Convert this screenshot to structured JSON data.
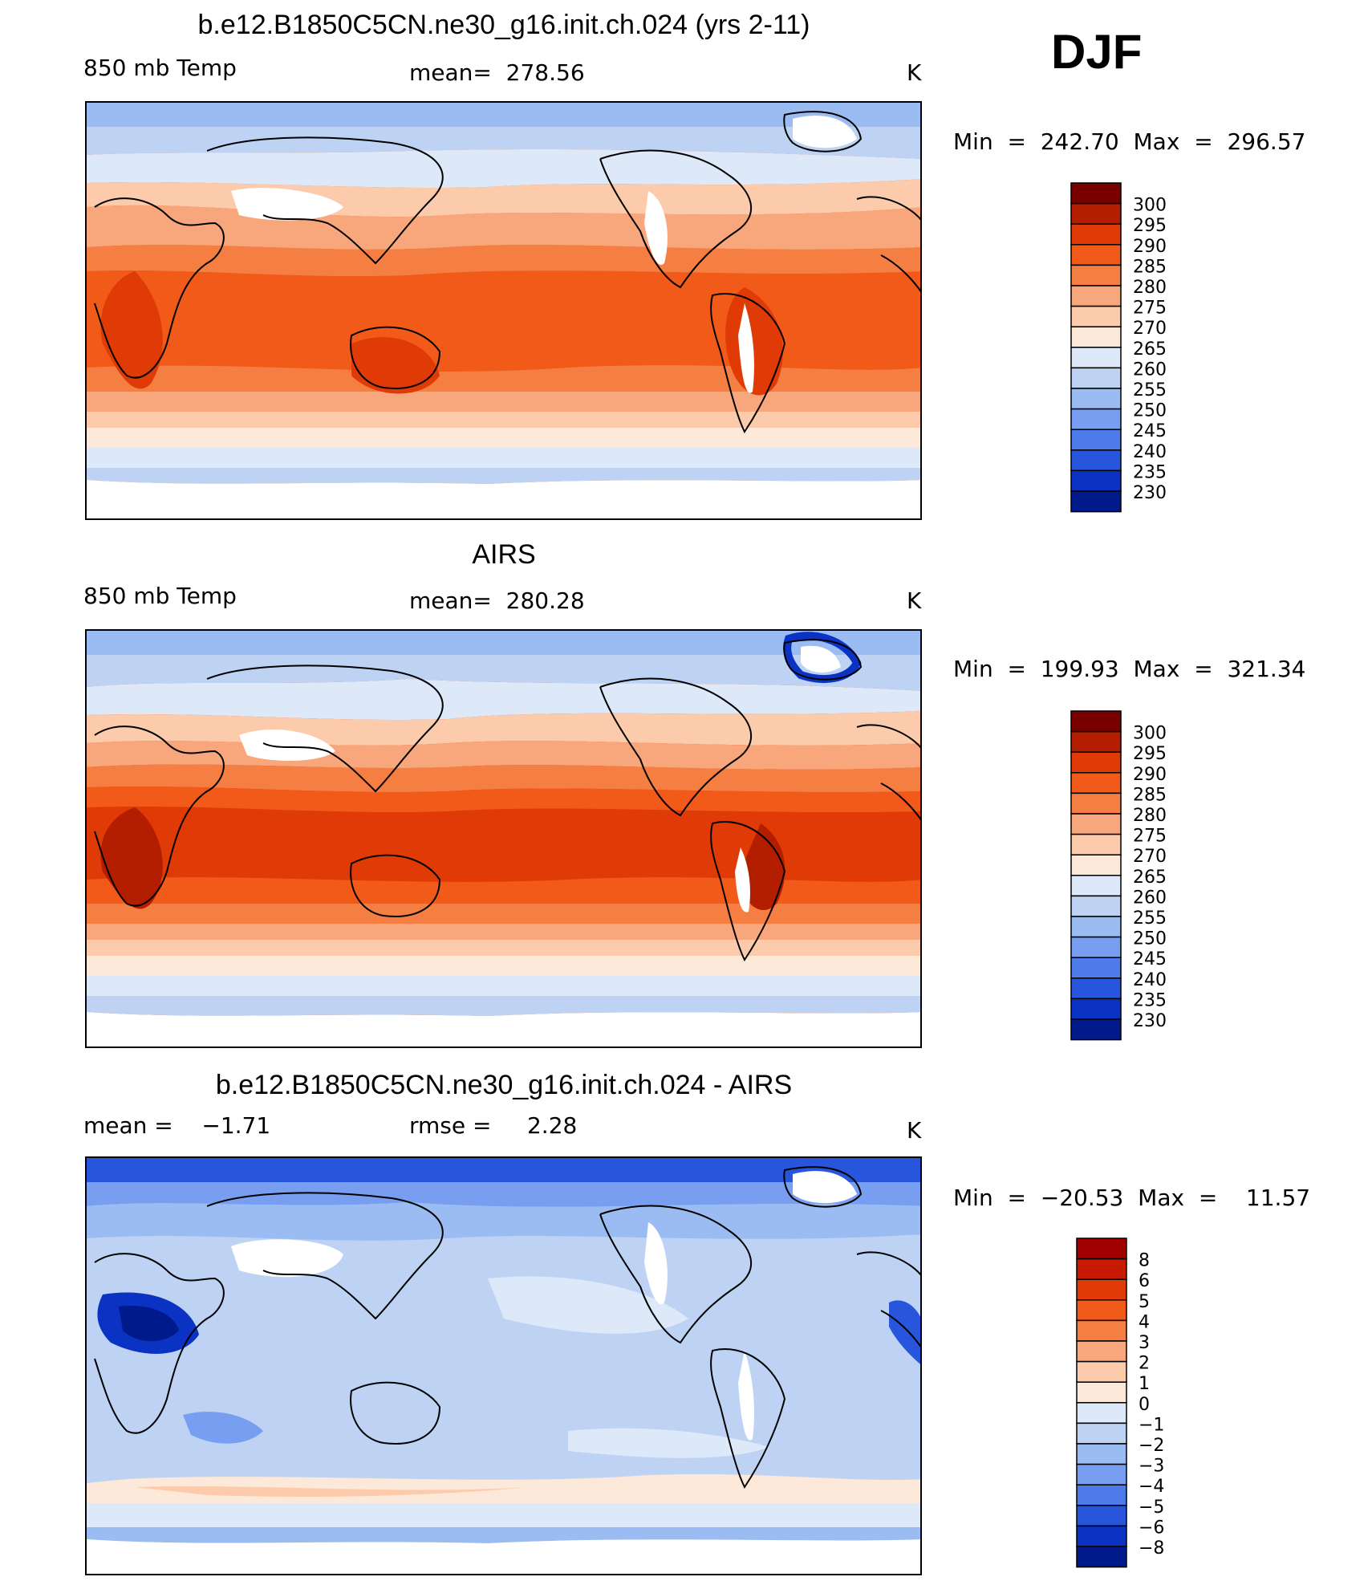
{
  "season": "DJF",
  "panels": [
    {
      "id": "model",
      "title": "b.e12.B1850C5CN.ne30_g16.init.ch.024 (yrs 2-11)",
      "left_label": "850 mb Temp",
      "center_label": "mean=  278.56",
      "units": "K",
      "minmax": "Min  =  242.70  Max  =  296.57",
      "colorbar_labels": [
        "300",
        "295",
        "290",
        "285",
        "280",
        "275",
        "270",
        "265",
        "260",
        "255",
        "250",
        "245",
        "240",
        "235",
        "230"
      ]
    },
    {
      "id": "obs",
      "title": "AIRS",
      "left_label": "850 mb Temp",
      "center_label": "mean=  280.28",
      "units": "K",
      "minmax": "Min  =  199.93  Max  =  321.34",
      "colorbar_labels": [
        "300",
        "295",
        "290",
        "285",
        "280",
        "275",
        "270",
        "265",
        "260",
        "255",
        "250",
        "245",
        "240",
        "235",
        "230"
      ]
    },
    {
      "id": "diff",
      "title": "b.e12.B1850C5CN.ne30_g16.init.ch.024 - AIRS",
      "left_label": "mean =    −1.71",
      "center_label": "rmse =     2.28",
      "units": "K",
      "minmax": "Min  =  −20.53  Max  =    11.57",
      "colorbar_labels": [
        "8",
        "6",
        "5",
        "4",
        "3",
        "2",
        "1",
        "0",
        "−1",
        "−2",
        "−3",
        "−4",
        "−5",
        "−6",
        "−8"
      ]
    }
  ],
  "colors": {
    "abs_scale": [
      "#7a0000",
      "#b31d00",
      "#e03a06",
      "#f25a19",
      "#f57f43",
      "#f8a77d",
      "#fbcbab",
      "#fde9d9",
      "#dde9f8",
      "#bed3f4",
      "#9bbcf2",
      "#779ef0",
      "#4e7bea",
      "#2756dc",
      "#0a33c4",
      "#001a8c"
    ],
    "diff_scale": [
      "#a10000",
      "#c81a00",
      "#e03a06",
      "#f25a19",
      "#f57f43",
      "#f8a77d",
      "#fbcbab",
      "#fde9d9",
      "#dde9f8",
      "#bed3f4",
      "#9bbcf2",
      "#779ef0",
      "#4e7bea",
      "#2756dc",
      "#0a33c4",
      "#001a8c"
    ]
  }
}
